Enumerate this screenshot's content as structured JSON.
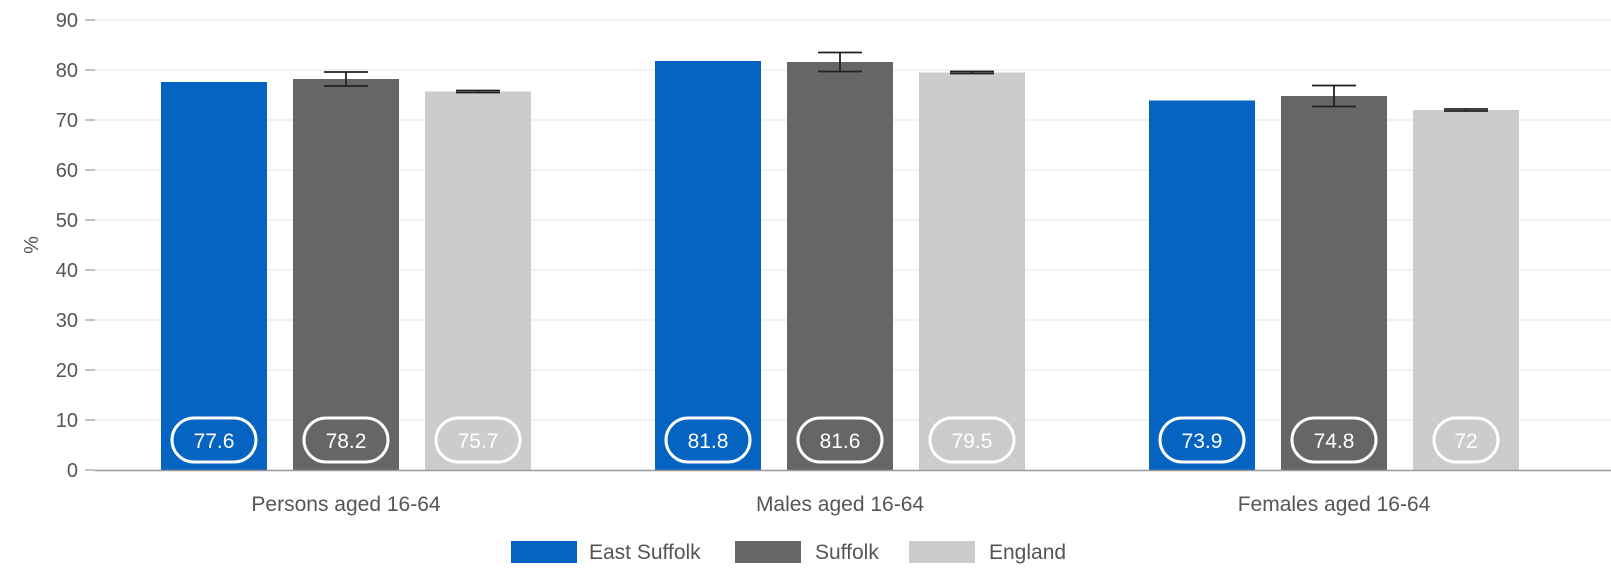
{
  "chart_data": {
    "type": "bar",
    "ylabel": "%",
    "ylim": [
      0,
      90
    ],
    "yticks": [
      0,
      10,
      20,
      30,
      40,
      50,
      60,
      70,
      80,
      90
    ],
    "grid": true,
    "legend_position": "bottom-center",
    "categories": [
      "Persons aged 16-64",
      "Males aged 16-64",
      "Females aged 16-64"
    ],
    "series": [
      {
        "name": "East Suffolk",
        "color": "#0563C1",
        "values": [
          77.6,
          81.8,
          73.9
        ],
        "labels": [
          "77.6",
          "81.8",
          "73.9"
        ],
        "error": null
      },
      {
        "name": "Suffolk",
        "color": "#666666",
        "values": [
          78.2,
          81.6,
          74.8
        ],
        "labels": [
          "78.2",
          "81.6",
          "74.8"
        ],
        "error": [
          [
            76.8,
            79.6
          ],
          [
            79.7,
            83.5
          ],
          [
            72.7,
            76.9
          ]
        ]
      },
      {
        "name": "England",
        "color": "#CCCCCC",
        "values": [
          75.7,
          79.5,
          72
        ],
        "labels": [
          "75.7",
          "79.5",
          "72"
        ],
        "error": [
          [
            75.5,
            75.9
          ],
          [
            79.3,
            79.7
          ],
          [
            71.8,
            72.2
          ]
        ]
      }
    ]
  }
}
